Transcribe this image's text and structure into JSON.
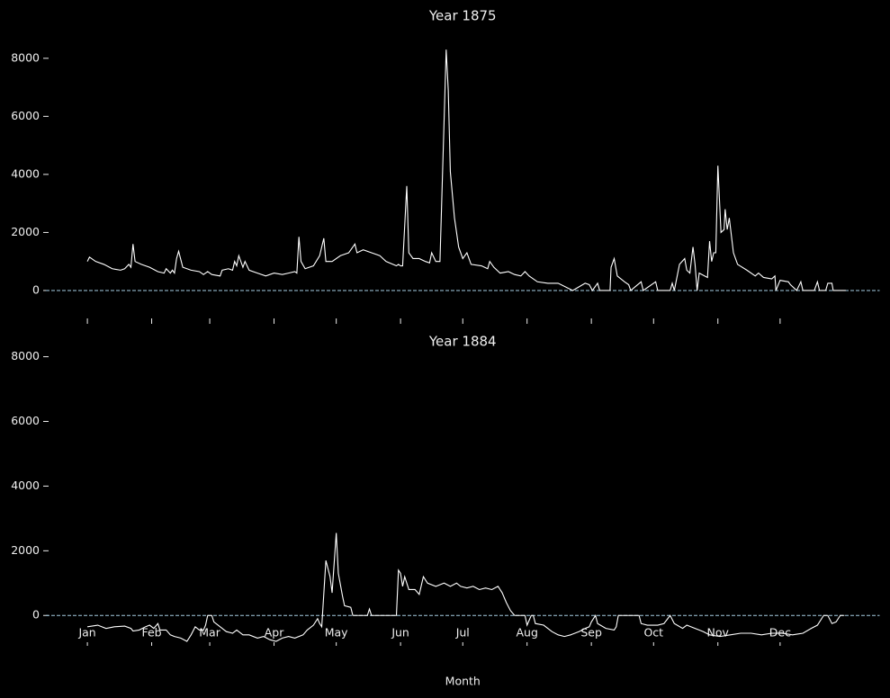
{
  "chart_data": [
    {
      "type": "line",
      "title": "Year 1875",
      "color": "#ffffff",
      "x": [
        0,
        1,
        4,
        8,
        12,
        16,
        18,
        20,
        21,
        22,
        23,
        26,
        30,
        34,
        37,
        38,
        40,
        41,
        42,
        43,
        44,
        46,
        50,
        54,
        56,
        58,
        60,
        64,
        65,
        68,
        70,
        71,
        72,
        73,
        75,
        76,
        78,
        82,
        86,
        90,
        94,
        97,
        100,
        101,
        102,
        103,
        105,
        109,
        112,
        114,
        115,
        118,
        122,
        126,
        129,
        130,
        133,
        137,
        141,
        144,
        149,
        150,
        151,
        152,
        154,
        155,
        157,
        160,
        163,
        165,
        166,
        168,
        170,
        173,
        174,
        175,
        177,
        179,
        181,
        183,
        185,
        190,
        193,
        194,
        196,
        199,
        203,
        206,
        209,
        211,
        213,
        217,
        222,
        227,
        234,
        240,
        242,
        243.5,
        246,
        247,
        252,
        252.5,
        254,
        255.5,
        259,
        261,
        262,
        267,
        268,
        274,
        275,
        281,
        282,
        283,
        285.5,
        288,
        289,
        290.5,
        292,
        293,
        294,
        295,
        299,
        300,
        301,
        302,
        303,
        304,
        305.5,
        307,
        307.5,
        308.5,
        309.5,
        311.5,
        313.5,
        318,
        322,
        323.6,
        326,
        330,
        331.5,
        332,
        334,
        338,
        339,
        342,
        344,
        345,
        350.5,
        352,
        353,
        356,
        357,
        359,
        359.6,
        365.7
      ],
      "values": [
        1000,
        1150,
        1000,
        900,
        750,
        700,
        750,
        900,
        800,
        1600,
        1000,
        900,
        800,
        650,
        600,
        750,
        600,
        700,
        600,
        1100,
        1350,
        800,
        700,
        650,
        550,
        650,
        550,
        500,
        700,
        750,
        700,
        1000,
        850,
        1200,
        800,
        1000,
        700,
        600,
        500,
        600,
        550,
        600,
        650,
        600,
        1850,
        1000,
        750,
        850,
        1200,
        1800,
        1000,
        1000,
        1200,
        1300,
        1600,
        1300,
        1400,
        1300,
        1200,
        1000,
        850,
        900,
        850,
        850,
        3600,
        1300,
        1100,
        1100,
        1000,
        950,
        1300,
        1000,
        1000,
        8300,
        6900,
        4100,
        2500,
        1500,
        1100,
        1300,
        900,
        850,
        750,
        1000,
        800,
        600,
        650,
        550,
        500,
        650,
        500,
        300,
        250,
        250,
        0,
        250,
        200,
        0,
        250,
        0,
        0,
        800,
        1100,
        500,
        300,
        200,
        0,
        300,
        0,
        300,
        0,
        0,
        250,
        0,
        900,
        1100,
        700,
        600,
        1500,
        900,
        0,
        600,
        450,
        1700,
        1000,
        1300,
        1300,
        4300,
        2000,
        2100,
        2800,
        2100,
        2500,
        1300,
        900,
        700,
        500,
        600,
        450,
        400,
        500,
        0,
        350,
        300,
        200,
        0,
        300,
        0,
        0,
        300,
        0,
        0,
        250,
        250,
        0,
        0
      ],
      "ylim": [
        -900,
        8800
      ],
      "yticks": [
        0,
        2000,
        4000,
        6000,
        8000
      ],
      "xlim": [
        -20,
        382
      ],
      "xticks": [
        0,
        31,
        59,
        90,
        120,
        151,
        181,
        212,
        243,
        273,
        304,
        334
      ],
      "show_xtick_labels": false,
      "hline": 0,
      "hline_color": "#a6cee3"
    },
    {
      "type": "line",
      "title": "Year 1884",
      "color": "#ffffff",
      "xlabel": "Month",
      "x": [
        0,
        5,
        9,
        13,
        18,
        21,
        22,
        25,
        28,
        30,
        32,
        34,
        35,
        38,
        40,
        42,
        45,
        48,
        50,
        52,
        54,
        56,
        57,
        58,
        60,
        61,
        64,
        67,
        70,
        72,
        75,
        78,
        82,
        85,
        88,
        91,
        94,
        97,
        100,
        104,
        106,
        109,
        111,
        112,
        113,
        115,
        117,
        118,
        120,
        121,
        123,
        124,
        127,
        128,
        135,
        136,
        137,
        149,
        150,
        151,
        152,
        153,
        155,
        158,
        160,
        162,
        164,
        168,
        172,
        175,
        178,
        180,
        183,
        186,
        189,
        192,
        195,
        198,
        200,
        202,
        204,
        206,
        211,
        212,
        214,
        215,
        216,
        220,
        224,
        227,
        230,
        233,
        237,
        240,
        242,
        243,
        245,
        246,
        250,
        254,
        255,
        256,
        266,
        267,
        270,
        275,
        278,
        281,
        283,
        287,
        289,
        293,
        297,
        300,
        305,
        310,
        315,
        320,
        325,
        330,
        335,
        340,
        345,
        349,
        352,
        355,
        357,
        359,
        361,
        363,
        365
      ],
      "values": [
        -350,
        -300,
        -400,
        -350,
        -330,
        -400,
        -480,
        -450,
        -350,
        -300,
        -400,
        -250,
        -450,
        -450,
        -600,
        -650,
        -700,
        -800,
        -600,
        -350,
        -450,
        -450,
        -300,
        0,
        0,
        -200,
        -350,
        -500,
        -550,
        -450,
        -600,
        -600,
        -700,
        -650,
        -750,
        -800,
        -700,
        -650,
        -700,
        -600,
        -450,
        -300,
        -100,
        -250,
        -350,
        1700,
        1200,
        700,
        2550,
        1300,
        600,
        300,
        250,
        0,
        0,
        200,
        0,
        0,
        1400,
        1300,
        900,
        1200,
        800,
        800,
        650,
        1200,
        1000,
        900,
        1000,
        900,
        1000,
        900,
        850,
        900,
        800,
        850,
        800,
        900,
        700,
        400,
        150,
        0,
        0,
        -300,
        0,
        0,
        -250,
        -300,
        -500,
        -600,
        -650,
        -600,
        -500,
        -400,
        -350,
        -200,
        0,
        -250,
        -400,
        -450,
        -350,
        0,
        0,
        -250,
        -300,
        -300,
        -250,
        0,
        -250,
        -400,
        -300,
        -400,
        -500,
        -600,
        -650,
        -600,
        -550,
        -550,
        -600,
        -550,
        -550,
        -600,
        -550,
        -400,
        -300,
        0,
        0,
        -250,
        -200,
        0,
        0
      ],
      "ylim": [
        -800,
        8100
      ],
      "yticks": [
        0,
        2000,
        4000,
        6000,
        8000
      ],
      "xlim": [
        -20,
        382
      ],
      "xticks": [
        {
          "value": 0,
          "label": "Jan"
        },
        {
          "value": 31,
          "label": "Feb"
        },
        {
          "value": 59,
          "label": "Mar"
        },
        {
          "value": 90,
          "label": "Apr"
        },
        {
          "value": 120,
          "label": "May"
        },
        {
          "value": 151,
          "label": "Jun"
        },
        {
          "value": 181,
          "label": "Jul"
        },
        {
          "value": 212,
          "label": "Aug"
        },
        {
          "value": 243,
          "label": "Sep"
        },
        {
          "value": 273,
          "label": "Oct"
        },
        {
          "value": 304,
          "label": "Nov"
        },
        {
          "value": 334,
          "label": "Dec"
        }
      ],
      "hline": 0,
      "hline_color": "#a6cee3"
    }
  ]
}
